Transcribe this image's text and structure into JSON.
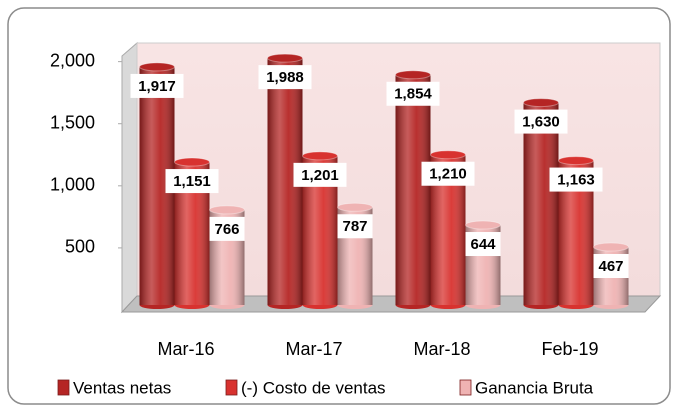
{
  "chart_data": {
    "type": "bar3d",
    "categories": [
      "Mar-16",
      "Mar-17",
      "Mar-18",
      "Feb-19"
    ],
    "series": [
      {
        "name": "Ventas netas",
        "color": "#b52524",
        "values": [
          1917,
          1988,
          1854,
          1630
        ],
        "value_labels": [
          "1,917",
          "1,988",
          "1,854",
          "1,630"
        ]
      },
      {
        "name": "(-) Costo de ventas",
        "color": "#d8322f",
        "values": [
          1151,
          1201,
          1210,
          1163
        ],
        "value_labels": [
          "1,151",
          "1,201",
          "1,210",
          "1,163"
        ]
      },
      {
        "name": "Ganancia Bruta",
        "color": "#efb3b3",
        "values": [
          766,
          787,
          644,
          467
        ],
        "value_labels": [
          "766",
          "787",
          "644",
          "467"
        ]
      }
    ],
    "ylim": [
      0,
      2150
    ],
    "yticks": [
      500,
      {
        "value": 1000,
        "label": "1,000"
      },
      {
        "value": 1500,
        "label": "1,500"
      },
      {
        "value": 2000,
        "label": "2,000"
      }
    ],
    "legend": "bottom"
  }
}
